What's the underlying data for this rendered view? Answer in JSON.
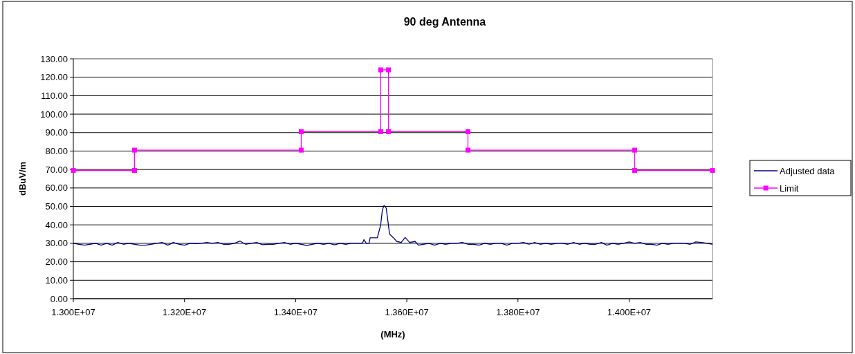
{
  "chart_data": {
    "type": "line",
    "title": "90 deg Antenna",
    "xlabel": "(MHz)",
    "ylabel": "dBuV/m",
    "xlim": [
      13000000,
      14150000
    ],
    "xticks": [
      {
        "value": 13000000,
        "label": "1.300E+07"
      },
      {
        "value": 13200000,
        "label": "1.320E+07"
      },
      {
        "value": 13400000,
        "label": "1.340E+07"
      },
      {
        "value": 13600000,
        "label": "1.360E+07"
      },
      {
        "value": 13800000,
        "label": "1.380E+07"
      },
      {
        "value": 14000000,
        "label": "1.400E+07"
      }
    ],
    "ylim": [
      0,
      130
    ],
    "yticks": [
      {
        "value": 0,
        "label": "0.00"
      },
      {
        "value": 10,
        "label": "10.00"
      },
      {
        "value": 20,
        "label": "20.00"
      },
      {
        "value": 30,
        "label": "30.00"
      },
      {
        "value": 40,
        "label": "40.00"
      },
      {
        "value": 50,
        "label": "50.00"
      },
      {
        "value": 60,
        "label": "60.00"
      },
      {
        "value": 70,
        "label": "70.00"
      },
      {
        "value": 80,
        "label": "80.00"
      },
      {
        "value": 90,
        "label": "90.00"
      },
      {
        "value": 100,
        "label": "100.00"
      },
      {
        "value": 110,
        "label": "110.00"
      },
      {
        "value": 120,
        "label": "120.00"
      },
      {
        "value": 130,
        "label": "130.00"
      }
    ],
    "grid": "y",
    "legend": "right",
    "line_style": "solid",
    "series": [
      {
        "name": "Adjusted data",
        "color": "#000080",
        "marker": "none",
        "x": [
          13000000,
          13010000,
          13020000,
          13030000,
          13040000,
          13050000,
          13060000,
          13070000,
          13080000,
          13090000,
          13100000,
          13110000,
          13120000,
          13130000,
          13140000,
          13150000,
          13160000,
          13170000,
          13180000,
          13190000,
          13200000,
          13210000,
          13220000,
          13230000,
          13240000,
          13250000,
          13260000,
          13270000,
          13280000,
          13290000,
          13300000,
          13310000,
          13320000,
          13330000,
          13340000,
          13350000,
          13360000,
          13370000,
          13380000,
          13390000,
          13400000,
          13410000,
          13420000,
          13430000,
          13440000,
          13450000,
          13460000,
          13470000,
          13480000,
          13490000,
          13500000,
          13507000,
          13520000,
          13523000,
          13527000,
          13532000,
          13534000,
          13547000,
          13553000,
          13556000,
          13559000,
          13563000,
          13566000,
          13569000,
          13576000,
          13582000,
          13590000,
          13597000,
          13605000,
          13615000,
          13621000,
          13630000,
          13640000,
          13650000,
          13660000,
          13670000,
          13680000,
          13690000,
          13700000,
          13710000,
          13720000,
          13730000,
          13740000,
          13750000,
          13760000,
          13770000,
          13780000,
          13790000,
          13800000,
          13810000,
          13820000,
          13830000,
          13840000,
          13850000,
          13860000,
          13870000,
          13880000,
          13890000,
          13900000,
          13910000,
          13920000,
          13930000,
          13940000,
          13950000,
          13960000,
          13970000,
          13980000,
          13990000,
          14000000,
          14010000,
          14020000,
          14030000,
          14040000,
          14050000,
          14060000,
          14070000,
          14080000,
          14090000,
          14100000,
          14110000,
          14120000,
          14130000,
          14140000,
          14150000
        ],
        "values": [
          30,
          29.5,
          29,
          29.5,
          30,
          29,
          30,
          29,
          30.5,
          29.5,
          30,
          29.5,
          29,
          29,
          29.5,
          30,
          30.5,
          29,
          30.5,
          29.5,
          29,
          30,
          29.8,
          30,
          30.5,
          30,
          30.5,
          29.5,
          29.5,
          30,
          31.2,
          29.5,
          30,
          30.5,
          29.3,
          29.5,
          29.5,
          30,
          30.5,
          29.5,
          30,
          29.5,
          28.8,
          29.5,
          30,
          29.5,
          30,
          29.2,
          30,
          29.5,
          30,
          30,
          30,
          32,
          30,
          30,
          33,
          33,
          40,
          48,
          50.5,
          49,
          42,
          35,
          33,
          31,
          30.5,
          33.2,
          30.5,
          31,
          29,
          29.5,
          30,
          29,
          30,
          29.5,
          30,
          30,
          30.5,
          29.5,
          29.5,
          29,
          30,
          29.5,
          30,
          30,
          29,
          30,
          30,
          30.5,
          29.5,
          30.5,
          29.5,
          30,
          29.5,
          30,
          30,
          29.5,
          30.5,
          29.5,
          30,
          29.5,
          29.5,
          30.5,
          29,
          30,
          29.5,
          30,
          30.8,
          30,
          30.5,
          29.5,
          29.5,
          29,
          30,
          29.5,
          30,
          30,
          30,
          29.5,
          30.8,
          30.5,
          30,
          29.5
        ]
      },
      {
        "name": "Limit",
        "color": "#ff00ff",
        "marker": "square",
        "x": [
          13000000,
          13110000,
          13110000,
          13410000,
          13410000,
          13553000,
          13553000,
          13567000,
          13567000,
          13710000,
          13710000,
          14010000,
          14010000,
          14150000
        ],
        "values": [
          69.5,
          69.5,
          80.5,
          80.5,
          90.5,
          90.5,
          124,
          124,
          90.5,
          90.5,
          80.5,
          80.5,
          69.5,
          69.5
        ]
      }
    ]
  }
}
